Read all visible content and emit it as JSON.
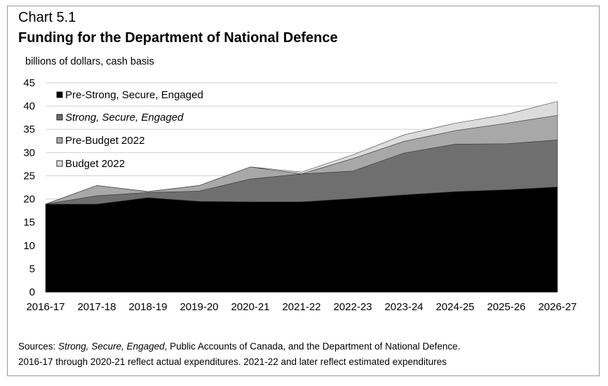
{
  "header": {
    "chart_number": "Chart 5.1",
    "title": "Funding for the Department of National Defence"
  },
  "notes": {
    "sources_prefix": "Sources: ",
    "sources_italic": "Strong, Secure, Engaged",
    "sources_rest": ", Public Accounts of Canada, and the Department of National Defence.",
    "line2": "2016-17 through 2020-21 reflect actual expenditures. 2021-22 and later reflect estimated expenditures"
  },
  "colors": {
    "pre_sse": "#000000",
    "sse": "#6f6f6f",
    "pre_budget": "#a8a8a8",
    "budget": "#dcdcdc",
    "grid": "#d0d0d0"
  },
  "chart_data": {
    "type": "area",
    "stacked": true,
    "ylabel": "billions of dollars, cash basis",
    "ylim": [
      0,
      45
    ],
    "yticks": [
      0,
      5,
      10,
      15,
      20,
      25,
      30,
      35,
      40,
      45
    ],
    "grid": true,
    "legend_position": "top-left",
    "categories": [
      "2016-17",
      "2017-18",
      "2018-19",
      "2019-20",
      "2020-21",
      "2021-22",
      "2022-23",
      "2023-24",
      "2024-25",
      "2025-26",
      "2026-27"
    ],
    "series": [
      {
        "name": "Pre-Strong, Secure, Engaged",
        "italic": false,
        "color_key": "pre_sse",
        "values": [
          18.9,
          18.9,
          20.3,
          19.5,
          19.4,
          19.4,
          20.1,
          20.9,
          21.6,
          22.0,
          22.6
        ]
      },
      {
        "name": "Strong, Secure, Engaged",
        "italic": true,
        "color_key": "sse",
        "values": [
          0.0,
          1.8,
          1.1,
          2.2,
          4.9,
          6.0,
          5.9,
          9.0,
          10.2,
          9.9,
          10.1
        ]
      },
      {
        "name": "Pre-Budget 2022",
        "italic": false,
        "color_key": "pre_budget",
        "values": [
          0.0,
          2.2,
          0.2,
          1.2,
          2.6,
          0.0,
          2.7,
          2.5,
          2.9,
          4.4,
          5.3
        ]
      },
      {
        "name": "Budget 2022",
        "italic": false,
        "color_key": "budget",
        "values": [
          0.0,
          0.0,
          0.0,
          0.0,
          0.0,
          0.4,
          0.8,
          1.4,
          1.6,
          1.9,
          3.0
        ]
      }
    ]
  }
}
